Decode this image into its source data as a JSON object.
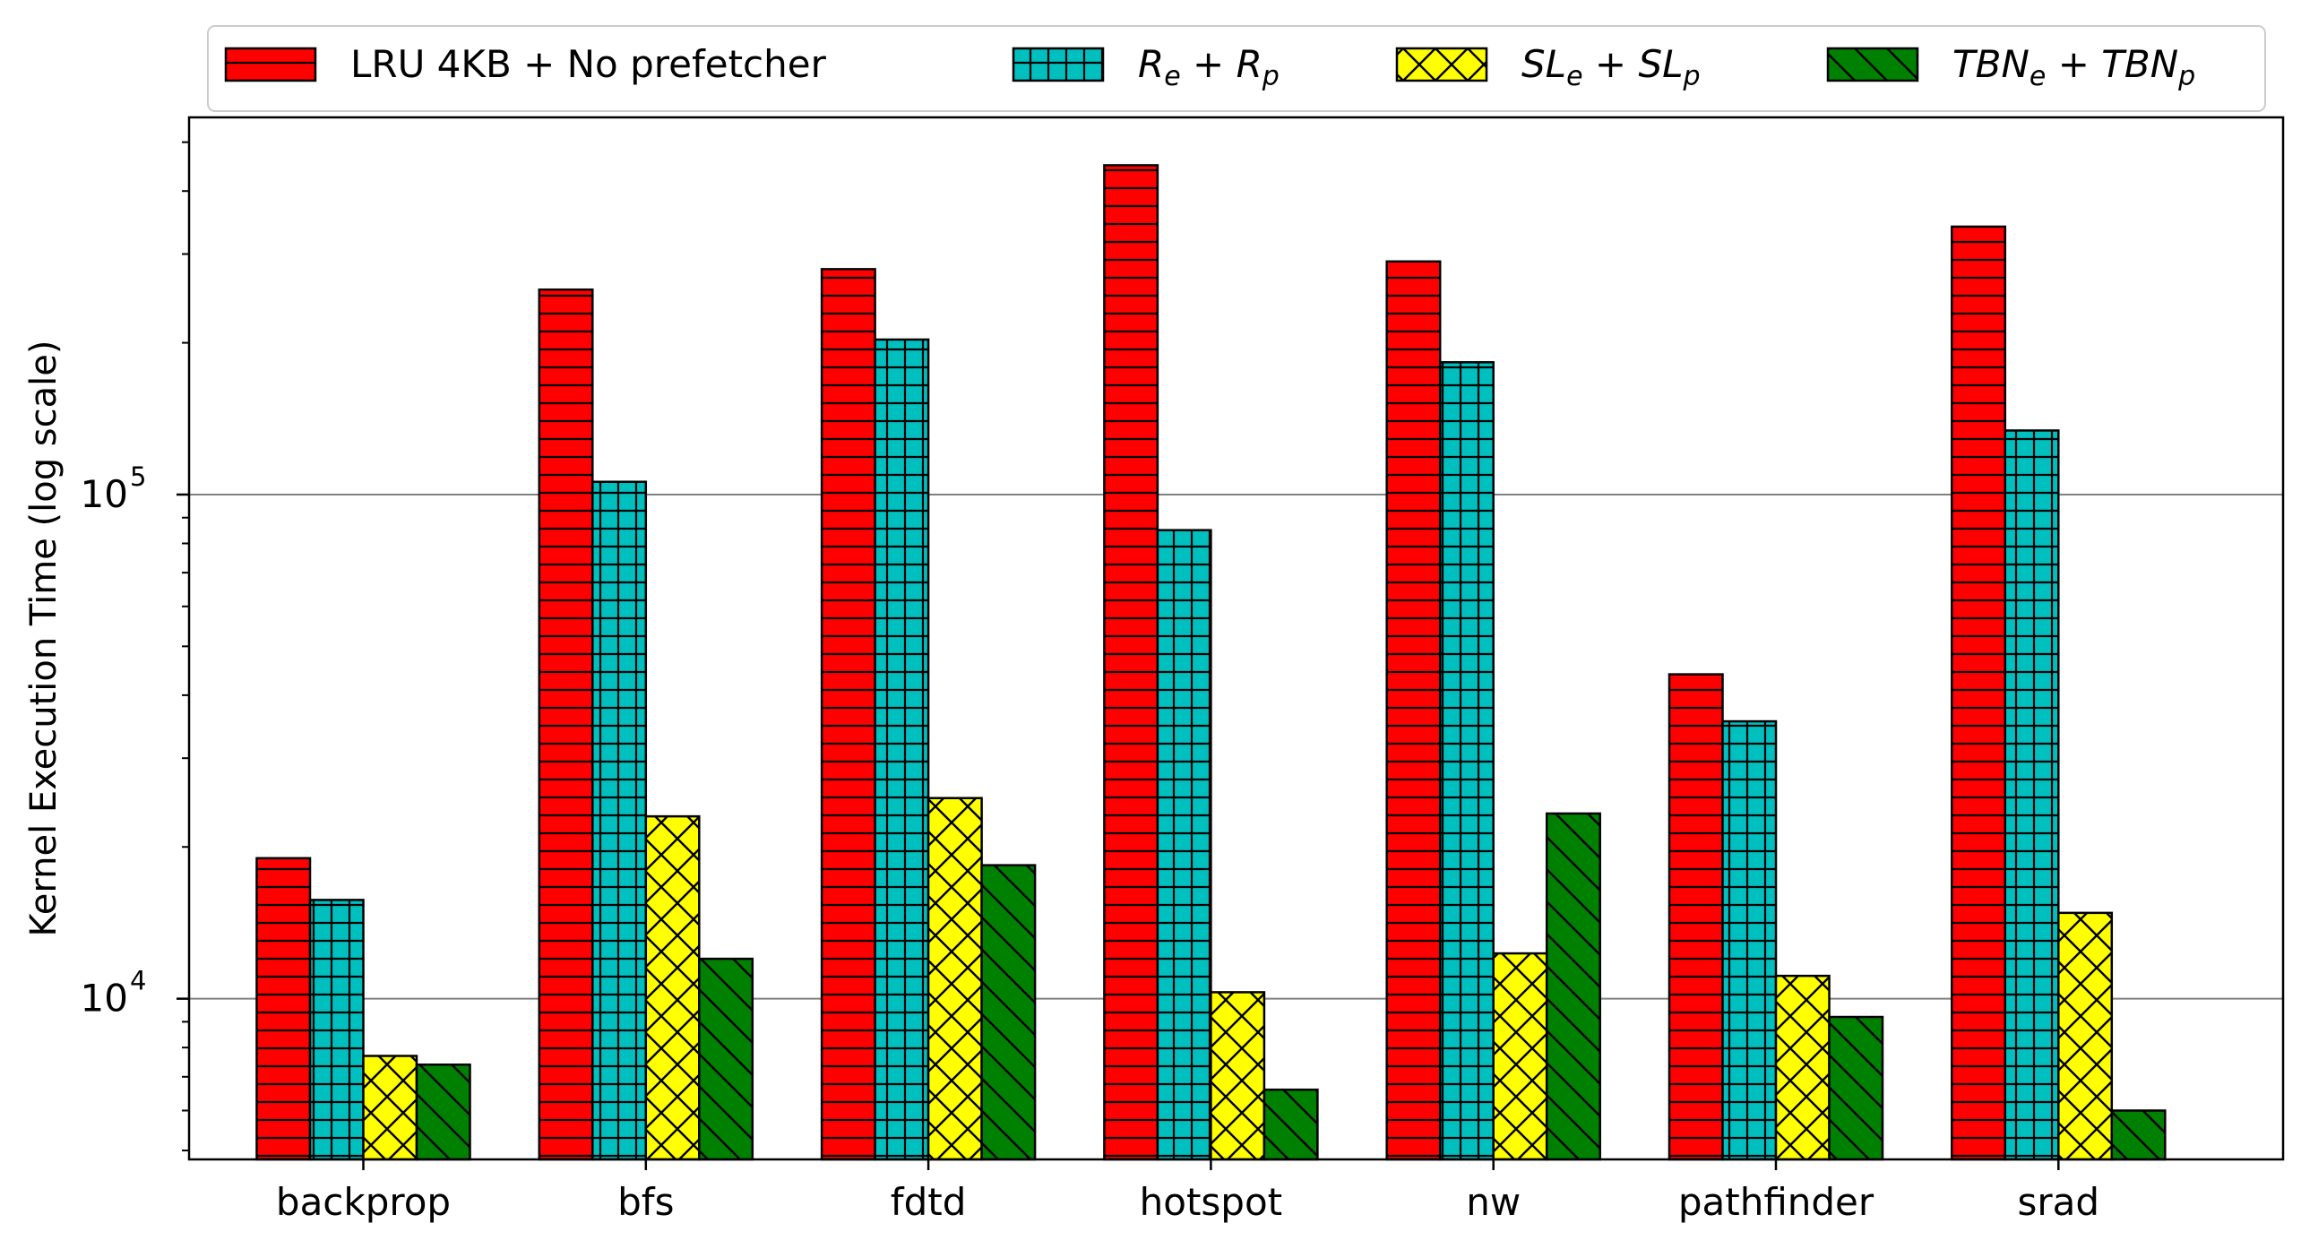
{
  "chart_data": {
    "type": "bar",
    "ylabel": "Kernel Execution Time (log scale)",
    "xlabel": "",
    "yscale": "log",
    "ylim": [
      4800,
      560000
    ],
    "grid": "horizontal at major ticks",
    "legend_position": "top, above plot",
    "categories": [
      "backprop",
      "bfs",
      "fdtd",
      "hotspot",
      "nw",
      "pathfinder",
      "srad"
    ],
    "series": [
      {
        "name": "LRU 4KB + No prefetcher",
        "legend_parts": [
          {
            "t": "LRU 4KB + No prefetcher"
          }
        ],
        "color": "#ff0000",
        "hatch": "horizontal",
        "values": [
          19000,
          255000,
          280000,
          450000,
          290000,
          44000,
          340000
        ]
      },
      {
        "name": "Re + Rp",
        "legend_parts": [
          {
            "t": "R",
            "i": true
          },
          {
            "t": "e",
            "i": true,
            "sub": true
          },
          {
            "t": " + "
          },
          {
            "t": "R",
            "i": true
          },
          {
            "t": "p",
            "i": true,
            "sub": true
          }
        ],
        "color": "#00bfbf",
        "hatch": "grid",
        "values": [
          15700,
          106000,
          203000,
          85000,
          183000,
          35500,
          134000
        ]
      },
      {
        "name": "SLe + SLp",
        "legend_parts": [
          {
            "t": "SL",
            "i": true
          },
          {
            "t": "e",
            "i": true,
            "sub": true
          },
          {
            "t": " + "
          },
          {
            "t": "SL",
            "i": true
          },
          {
            "t": "p",
            "i": true,
            "sub": true
          }
        ],
        "color": "#ffff00",
        "hatch": "cross",
        "values": [
          7700,
          23000,
          25000,
          10300,
          12300,
          11100,
          14800
        ]
      },
      {
        "name": "TBNe + TBNp",
        "legend_parts": [
          {
            "t": "TBN",
            "i": true
          },
          {
            "t": "e",
            "i": true,
            "sub": true
          },
          {
            "t": " + "
          },
          {
            "t": "TBN",
            "i": true
          },
          {
            "t": "p",
            "i": true,
            "sub": true
          }
        ],
        "color": "#008000",
        "hatch": "backslash",
        "values": [
          7400,
          12000,
          18400,
          6600,
          23300,
          9200,
          6000
        ]
      }
    ],
    "y_major_ticks": [
      {
        "value": 10000,
        "base": "10",
        "exp": "4"
      },
      {
        "value": 100000,
        "base": "10",
        "exp": "5"
      }
    ]
  }
}
